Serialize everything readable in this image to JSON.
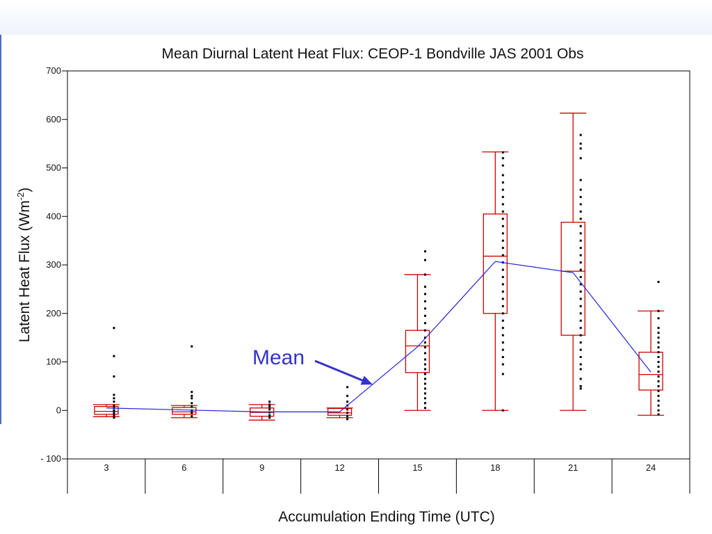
{
  "chart_data": {
    "type": "box",
    "title": "Mean Diurnal Latent Heat Flux: CEOP-1 Bondville JAS 2001 Obs",
    "xlabel": "Accumulation Ending Time (UTC)",
    "ylabel": "Latent Heat Flux (Wm-2)",
    "ylim": [
      -100,
      700
    ],
    "yticks": [
      -100,
      0,
      100,
      200,
      300,
      400,
      500,
      600,
      700
    ],
    "categories": [
      "3",
      "6",
      "9",
      "12",
      "15",
      "18",
      "21",
      "24"
    ],
    "boxes": [
      {
        "whisker_low": -13,
        "q1": -8,
        "median": -2,
        "q3": 8,
        "whisker_high": 12
      },
      {
        "whisker_low": -15,
        "q1": -8,
        "median": -3,
        "q3": 6,
        "whisker_high": 10
      },
      {
        "whisker_low": -20,
        "q1": -12,
        "median": -4,
        "q3": 5,
        "whisker_high": 12
      },
      {
        "whisker_low": -15,
        "q1": -10,
        "median": -5,
        "q3": 4,
        "whisker_high": 5
      },
      {
        "whisker_low": 0,
        "q1": 78,
        "median": 133,
        "q3": 165,
        "whisker_high": 280
      },
      {
        "whisker_low": 0,
        "q1": 200,
        "median": 318,
        "q3": 405,
        "whisker_high": 533
      },
      {
        "whisker_low": 0,
        "q1": 155,
        "median": 287,
        "q3": 388,
        "whisker_high": 613
      },
      {
        "whisker_low": -10,
        "q1": 42,
        "median": 74,
        "q3": 120,
        "whisker_high": 205
      }
    ],
    "outliers": [
      [
        170,
        112,
        70,
        32,
        25,
        18,
        10,
        5,
        0,
        -5,
        -10,
        -15
      ],
      [
        132,
        38,
        30,
        25,
        15,
        8,
        0,
        -5,
        -12
      ],
      [
        18,
        12,
        8,
        2,
        -4,
        -10,
        -15
      ],
      [
        48,
        30,
        18,
        10,
        2,
        -5,
        -12,
        -18
      ],
      [
        328,
        310,
        280,
        255,
        240,
        225,
        210,
        195,
        180,
        165,
        150,
        140,
        130,
        118,
        105,
        95,
        85,
        75,
        65,
        55,
        45,
        35,
        25,
        15,
        5
      ],
      [
        532,
        520,
        505,
        485,
        470,
        455,
        440,
        425,
        410,
        395,
        380,
        365,
        350,
        335,
        320,
        305,
        290,
        275,
        260,
        245,
        230,
        215,
        200,
        185,
        170,
        155,
        140,
        125,
        110,
        95,
        75,
        0
      ],
      [
        568,
        550,
        540,
        520,
        475,
        455,
        440,
        425,
        410,
        395,
        380,
        365,
        350,
        335,
        320,
        305,
        290,
        275,
        260,
        245,
        230,
        215,
        200,
        185,
        170,
        155,
        140,
        125,
        110,
        95,
        85,
        65,
        50,
        45
      ],
      [
        265,
        205,
        190,
        170,
        160,
        150,
        140,
        130,
        120,
        110,
        100,
        90,
        80,
        70,
        60,
        50,
        40,
        30,
        20,
        10,
        0,
        -8
      ]
    ],
    "mean": [
      5,
      1,
      -3,
      -3,
      131,
      307,
      284,
      79
    ],
    "annotation": "Mean",
    "colors": {
      "box": "#cc0000",
      "mean_line": "#2222dd",
      "annotation": "#3333cc",
      "points": "#000000",
      "axis": "#000000"
    }
  }
}
